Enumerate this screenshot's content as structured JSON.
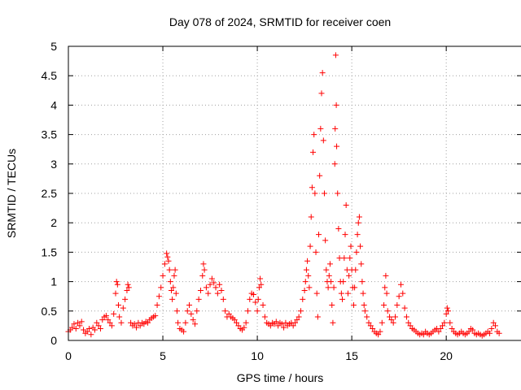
{
  "chart_data": {
    "type": "scatter",
    "title": "Day 078 of 2024, SRMTID for receiver coen",
    "xlabel": "GPS time / hours",
    "ylabel": "SRMTID / TECUs",
    "xlim": [
      0,
      24
    ],
    "ylim": [
      0,
      5
    ],
    "xticks": [
      0,
      5,
      10,
      15,
      20
    ],
    "xtick_labels": [
      "0",
      "5",
      "10",
      "15",
      "20"
    ],
    "yticks": [
      0,
      0.5,
      1,
      1.5,
      2,
      2.5,
      3,
      3.5,
      4,
      4.5,
      5
    ],
    "ytick_labels": [
      "0",
      "0.5",
      "1",
      "1.5",
      "2",
      "2.5",
      "3",
      "3.5",
      "4",
      "4.5",
      "5"
    ],
    "grid": true,
    "marker": "+",
    "series": [
      {
        "name": "SRMTID",
        "color": "#ff0000",
        "points": [
          [
            0.0,
            0.15
          ],
          [
            0.1,
            0.18
          ],
          [
            0.2,
            0.22
          ],
          [
            0.3,
            0.28
          ],
          [
            0.4,
            0.2
          ],
          [
            0.5,
            0.3
          ],
          [
            0.6,
            0.25
          ],
          [
            0.7,
            0.32
          ],
          [
            0.8,
            0.18
          ],
          [
            0.9,
            0.12
          ],
          [
            1.0,
            0.15
          ],
          [
            1.1,
            0.2
          ],
          [
            1.2,
            0.1
          ],
          [
            1.3,
            0.22
          ],
          [
            1.4,
            0.18
          ],
          [
            1.5,
            0.3
          ],
          [
            1.6,
            0.25
          ],
          [
            1.7,
            0.2
          ],
          [
            1.8,
            0.35
          ],
          [
            1.9,
            0.4
          ],
          [
            2.0,
            0.42
          ],
          [
            2.1,
            0.35
          ],
          [
            2.2,
            0.3
          ],
          [
            2.3,
            0.25
          ],
          [
            2.4,
            0.45
          ],
          [
            2.5,
            0.8
          ],
          [
            2.55,
            1.0
          ],
          [
            2.6,
            0.95
          ],
          [
            2.65,
            0.6
          ],
          [
            2.7,
            0.4
          ],
          [
            2.8,
            0.3
          ],
          [
            2.9,
            0.55
          ],
          [
            3.0,
            0.7
          ],
          [
            3.1,
            0.85
          ],
          [
            3.15,
            0.95
          ],
          [
            3.2,
            0.9
          ],
          [
            3.3,
            0.3
          ],
          [
            3.4,
            0.25
          ],
          [
            3.5,
            0.28
          ],
          [
            3.6,
            0.22
          ],
          [
            3.7,
            0.3
          ],
          [
            3.8,
            0.25
          ],
          [
            3.9,
            0.3
          ],
          [
            4.0,
            0.28
          ],
          [
            4.1,
            0.32
          ],
          [
            4.2,
            0.3
          ],
          [
            4.3,
            0.35
          ],
          [
            4.4,
            0.38
          ],
          [
            4.5,
            0.4
          ],
          [
            4.6,
            0.42
          ],
          [
            4.7,
            0.6
          ],
          [
            4.8,
            0.75
          ],
          [
            4.9,
            0.9
          ],
          [
            5.0,
            1.1
          ],
          [
            5.1,
            1.3
          ],
          [
            5.2,
            1.48
          ],
          [
            5.25,
            1.42
          ],
          [
            5.3,
            1.35
          ],
          [
            5.35,
            1.2
          ],
          [
            5.4,
            1.0
          ],
          [
            5.45,
            0.85
          ],
          [
            5.5,
            0.7
          ],
          [
            5.55,
            0.9
          ],
          [
            5.6,
            1.1
          ],
          [
            5.65,
            1.2
          ],
          [
            5.7,
            0.8
          ],
          [
            5.75,
            0.5
          ],
          [
            5.8,
            0.3
          ],
          [
            5.9,
            0.2
          ],
          [
            6.0,
            0.18
          ],
          [
            6.1,
            0.15
          ],
          [
            6.2,
            0.3
          ],
          [
            6.3,
            0.5
          ],
          [
            6.4,
            0.6
          ],
          [
            6.5,
            0.45
          ],
          [
            6.6,
            0.35
          ],
          [
            6.7,
            0.28
          ],
          [
            6.8,
            0.5
          ],
          [
            6.9,
            0.7
          ],
          [
            7.0,
            0.85
          ],
          [
            7.1,
            1.1
          ],
          [
            7.15,
            1.3
          ],
          [
            7.2,
            1.2
          ],
          [
            7.3,
            0.9
          ],
          [
            7.4,
            0.8
          ],
          [
            7.5,
            0.95
          ],
          [
            7.6,
            1.05
          ],
          [
            7.7,
            0.98
          ],
          [
            7.8,
            0.9
          ],
          [
            7.9,
            0.8
          ],
          [
            8.0,
            0.95
          ],
          [
            8.1,
            0.85
          ],
          [
            8.2,
            0.7
          ],
          [
            8.3,
            0.5
          ],
          [
            8.4,
            0.4
          ],
          [
            8.5,
            0.45
          ],
          [
            8.6,
            0.4
          ],
          [
            8.7,
            0.38
          ],
          [
            8.8,
            0.35
          ],
          [
            8.9,
            0.3
          ],
          [
            9.0,
            0.25
          ],
          [
            9.1,
            0.2
          ],
          [
            9.2,
            0.18
          ],
          [
            9.3,
            0.22
          ],
          [
            9.4,
            0.3
          ],
          [
            9.5,
            0.5
          ],
          [
            9.6,
            0.7
          ],
          [
            9.7,
            0.8
          ],
          [
            9.8,
            0.78
          ],
          [
            9.9,
            0.65
          ],
          [
            10.0,
            0.5
          ],
          [
            10.05,
            0.7
          ],
          [
            10.1,
            0.9
          ],
          [
            10.15,
            1.05
          ],
          [
            10.2,
            0.95
          ],
          [
            10.3,
            0.6
          ],
          [
            10.4,
            0.4
          ],
          [
            10.5,
            0.3
          ],
          [
            10.6,
            0.28
          ],
          [
            10.7,
            0.25
          ],
          [
            10.8,
            0.3
          ],
          [
            10.9,
            0.28
          ],
          [
            11.0,
            0.32
          ],
          [
            11.1,
            0.25
          ],
          [
            11.2,
            0.3
          ],
          [
            11.3,
            0.28
          ],
          [
            11.4,
            0.22
          ],
          [
            11.5,
            0.3
          ],
          [
            11.6,
            0.25
          ],
          [
            11.7,
            0.28
          ],
          [
            11.8,
            0.3
          ],
          [
            11.9,
            0.25
          ],
          [
            12.0,
            0.3
          ],
          [
            12.1,
            0.35
          ],
          [
            12.2,
            0.4
          ],
          [
            12.3,
            0.5
          ],
          [
            12.4,
            0.7
          ],
          [
            12.5,
            0.85
          ],
          [
            12.55,
            1.0
          ],
          [
            12.6,
            1.2
          ],
          [
            12.65,
            1.35
          ],
          [
            12.7,
            1.1
          ],
          [
            12.75,
            0.9
          ],
          [
            12.8,
            1.6
          ],
          [
            12.85,
            2.1
          ],
          [
            12.9,
            2.6
          ],
          [
            12.95,
            3.2
          ],
          [
            13.0,
            3.5
          ],
          [
            13.05,
            2.5
          ],
          [
            13.1,
            1.5
          ],
          [
            13.15,
            0.8
          ],
          [
            13.2,
            0.4
          ],
          [
            13.25,
            1.8
          ],
          [
            13.3,
            2.8
          ],
          [
            13.35,
            3.6
          ],
          [
            13.4,
            4.2
          ],
          [
            13.45,
            4.55
          ],
          [
            13.5,
            3.4
          ],
          [
            13.55,
            2.5
          ],
          [
            13.6,
            1.7
          ],
          [
            13.65,
            1.2
          ],
          [
            13.7,
            1.0
          ],
          [
            13.75,
            0.9
          ],
          [
            13.8,
            1.1
          ],
          [
            13.85,
            1.3
          ],
          [
            13.9,
            1.0
          ],
          [
            13.95,
            0.6
          ],
          [
            14.0,
            0.3
          ],
          [
            14.05,
            0.9
          ],
          [
            14.1,
            3.0
          ],
          [
            14.12,
            3.6
          ],
          [
            14.15,
            4.85
          ],
          [
            14.18,
            4.0
          ],
          [
            14.2,
            3.3
          ],
          [
            14.25,
            2.5
          ],
          [
            14.3,
            1.9
          ],
          [
            14.35,
            1.4
          ],
          [
            14.4,
            1.0
          ],
          [
            14.45,
            0.8
          ],
          [
            14.5,
            0.7
          ],
          [
            14.55,
            1.0
          ],
          [
            14.6,
            1.4
          ],
          [
            14.65,
            1.8
          ],
          [
            14.7,
            2.3
          ],
          [
            14.75,
            1.2
          ],
          [
            14.8,
            0.8
          ],
          [
            14.85,
            1.1
          ],
          [
            14.9,
            1.4
          ],
          [
            14.95,
            1.6
          ],
          [
            15.0,
            1.2
          ],
          [
            15.05,
            0.9
          ],
          [
            15.1,
            0.6
          ],
          [
            15.15,
            0.9
          ],
          [
            15.2,
            1.2
          ],
          [
            15.25,
            1.5
          ],
          [
            15.3,
            1.8
          ],
          [
            15.35,
            2.0
          ],
          [
            15.4,
            2.1
          ],
          [
            15.45,
            1.6
          ],
          [
            15.5,
            1.3
          ],
          [
            15.55,
            1.0
          ],
          [
            15.6,
            0.8
          ],
          [
            15.65,
            0.6
          ],
          [
            15.7,
            0.5
          ],
          [
            15.8,
            0.4
          ],
          [
            15.9,
            0.3
          ],
          [
            16.0,
            0.25
          ],
          [
            16.1,
            0.2
          ],
          [
            16.2,
            0.15
          ],
          [
            16.3,
            0.12
          ],
          [
            16.4,
            0.1
          ],
          [
            16.5,
            0.15
          ],
          [
            16.6,
            0.3
          ],
          [
            16.7,
            0.6
          ],
          [
            16.75,
            0.9
          ],
          [
            16.8,
            1.1
          ],
          [
            16.85,
            0.8
          ],
          [
            16.9,
            0.5
          ],
          [
            17.0,
            0.4
          ],
          [
            17.1,
            0.35
          ],
          [
            17.2,
            0.3
          ],
          [
            17.3,
            0.4
          ],
          [
            17.4,
            0.6
          ],
          [
            17.5,
            0.75
          ],
          [
            17.6,
            0.95
          ],
          [
            17.7,
            0.8
          ],
          [
            17.8,
            0.55
          ],
          [
            17.9,
            0.4
          ],
          [
            18.0,
            0.3
          ],
          [
            18.1,
            0.25
          ],
          [
            18.2,
            0.2
          ],
          [
            18.3,
            0.18
          ],
          [
            18.4,
            0.15
          ],
          [
            18.5,
            0.12
          ],
          [
            18.6,
            0.1
          ],
          [
            18.7,
            0.12
          ],
          [
            18.8,
            0.1
          ],
          [
            18.9,
            0.15
          ],
          [
            19.0,
            0.12
          ],
          [
            19.1,
            0.1
          ],
          [
            19.2,
            0.12
          ],
          [
            19.3,
            0.15
          ],
          [
            19.4,
            0.18
          ],
          [
            19.5,
            0.2
          ],
          [
            19.6,
            0.15
          ],
          [
            19.7,
            0.2
          ],
          [
            19.8,
            0.25
          ],
          [
            19.9,
            0.3
          ],
          [
            20.0,
            0.45
          ],
          [
            20.05,
            0.55
          ],
          [
            20.1,
            0.5
          ],
          [
            20.2,
            0.3
          ],
          [
            20.3,
            0.2
          ],
          [
            20.4,
            0.15
          ],
          [
            20.5,
            0.12
          ],
          [
            20.6,
            0.1
          ],
          [
            20.7,
            0.12
          ],
          [
            20.8,
            0.15
          ],
          [
            20.9,
            0.12
          ],
          [
            21.0,
            0.1
          ],
          [
            21.1,
            0.12
          ],
          [
            21.2,
            0.15
          ],
          [
            21.3,
            0.2
          ],
          [
            21.4,
            0.18
          ],
          [
            21.5,
            0.12
          ],
          [
            21.6,
            0.1
          ],
          [
            21.7,
            0.12
          ],
          [
            21.8,
            0.1
          ],
          [
            21.9,
            0.08
          ],
          [
            22.0,
            0.1
          ],
          [
            22.1,
            0.12
          ],
          [
            22.2,
            0.15
          ],
          [
            22.3,
            0.12
          ],
          [
            22.4,
            0.2
          ],
          [
            22.5,
            0.3
          ],
          [
            22.6,
            0.25
          ],
          [
            22.7,
            0.15
          ],
          [
            22.8,
            0.12
          ]
        ]
      }
    ]
  }
}
